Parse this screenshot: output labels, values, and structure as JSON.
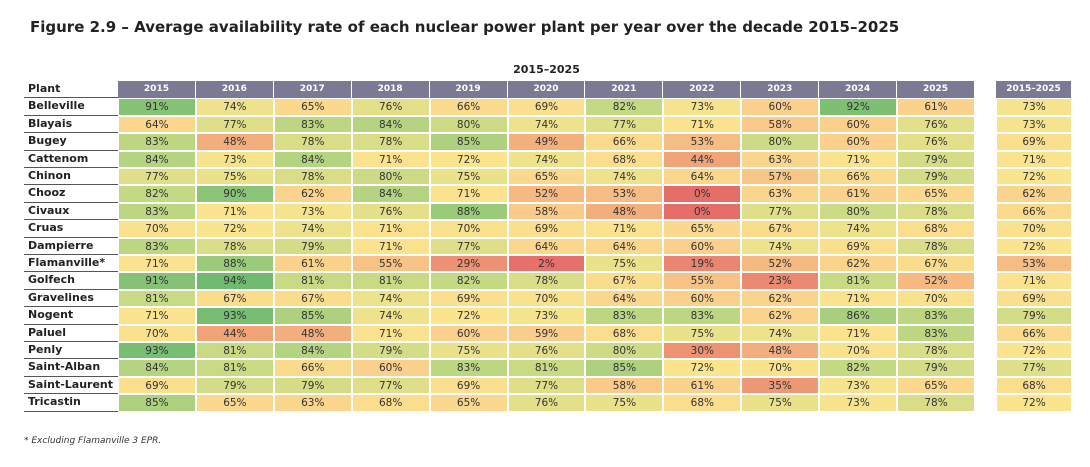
{
  "title": "Figure 2.9 – Average availability rate of each nuclear power plant per year over the decade 2015–2025",
  "table": {
    "group_header": "2015–2025",
    "header": [
      "Plant",
      "2015",
      "2016",
      "2017",
      "2018",
      "2019",
      "2020",
      "2021",
      "2022",
      "2023",
      "2024",
      "2025"
    ],
    "average_header": "2015–2025",
    "rows": [
      [
        "Belleville",
        "91%",
        "74%",
        "65%",
        "76%",
        "66%",
        "69%",
        "82%",
        "73%",
        "60%",
        "92%",
        "61%"
      ],
      [
        "Blayais",
        "64%",
        "77%",
        "83%",
        "84%",
        "80%",
        "74%",
        "77%",
        "71%",
        "58%",
        "60%",
        "76%"
      ],
      [
        "Bugey",
        "83%",
        "48%",
        "78%",
        "78%",
        "85%",
        "49%",
        "66%",
        "53%",
        "80%",
        "60%",
        "76%"
      ],
      [
        "Cattenom",
        "84%",
        "73%",
        "84%",
        "71%",
        "72%",
        "74%",
        "68%",
        "44%",
        "63%",
        "71%",
        "79%"
      ],
      [
        "Chinon",
        "77%",
        "75%",
        "78%",
        "80%",
        "75%",
        "65%",
        "74%",
        "64%",
        "57%",
        "66%",
        "79%"
      ],
      [
        "Chooz",
        "82%",
        "90%",
        "62%",
        "84%",
        "71%",
        "52%",
        "53%",
        "0%",
        "63%",
        "61%",
        "65%"
      ],
      [
        "Civaux",
        "83%",
        "71%",
        "73%",
        "76%",
        "88%",
        "58%",
        "48%",
        "0%",
        "77%",
        "80%",
        "78%"
      ],
      [
        "Cruas",
        "70%",
        "72%",
        "74%",
        "71%",
        "70%",
        "69%",
        "71%",
        "65%",
        "67%",
        "74%",
        "68%"
      ],
      [
        "Dampierre",
        "83%",
        "78%",
        "79%",
        "71%",
        "77%",
        "64%",
        "64%",
        "60%",
        "74%",
        "69%",
        "78%"
      ],
      [
        "Flamanville*",
        "71%",
        "88%",
        "61%",
        "55%",
        "29%",
        "2%",
        "75%",
        "19%",
        "52%",
        "62%",
        "67%"
      ],
      [
        "Golfech",
        "91%",
        "94%",
        "81%",
        "81%",
        "82%",
        "78%",
        "67%",
        "55%",
        "23%",
        "81%",
        "52%"
      ],
      [
        "Gravelines",
        "81%",
        "67%",
        "67%",
        "74%",
        "69%",
        "70%",
        "64%",
        "60%",
        "62%",
        "71%",
        "70%"
      ],
      [
        "Nogent",
        "71%",
        "93%",
        "85%",
        "74%",
        "72%",
        "73%",
        "83%",
        "83%",
        "62%",
        "86%",
        "83%"
      ],
      [
        "Paluel",
        "70%",
        "44%",
        "48%",
        "71%",
        "60%",
        "59%",
        "68%",
        "75%",
        "74%",
        "71%",
        "83%"
      ],
      [
        "Penly",
        "93%",
        "81%",
        "84%",
        "79%",
        "75%",
        "76%",
        "80%",
        "30%",
        "48%",
        "70%",
        "78%"
      ],
      [
        "Saint-Alban",
        "84%",
        "81%",
        "66%",
        "60%",
        "83%",
        "81%",
        "85%",
        "72%",
        "70%",
        "82%",
        "79%"
      ],
      [
        "Saint-Laurent",
        "69%",
        "79%",
        "79%",
        "77%",
        "69%",
        "77%",
        "58%",
        "61%",
        "35%",
        "73%",
        "65%"
      ],
      [
        "Tricastin",
        "85%",
        "65%",
        "63%",
        "68%",
        "65%",
        "76%",
        "75%",
        "68%",
        "75%",
        "73%",
        "78%"
      ]
    ],
    "averages": [
      "73%",
      "73%",
      "69%",
      "71%",
      "72%",
      "62%",
      "66%",
      "70%",
      "72%",
      "53%",
      "71%",
      "69%",
      "79%",
      "66%",
      "72%",
      "77%",
      "68%",
      "72%"
    ]
  },
  "footnote": "* Excluding Flamanville 3 EPR."
}
